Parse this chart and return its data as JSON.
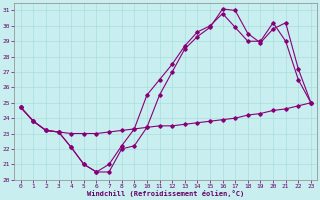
{
  "xlabel": "Windchill (Refroidissement éolien,°C)",
  "background_color": "#c8eef0",
  "grid_color": "#aadddd",
  "line_color": "#880077",
  "ylim": [
    20,
    31.5
  ],
  "xlim": [
    -0.5,
    23.5
  ],
  "yticks": [
    20,
    21,
    22,
    23,
    24,
    25,
    26,
    27,
    28,
    29,
    30,
    31
  ],
  "xticks": [
    0,
    1,
    2,
    3,
    4,
    5,
    6,
    7,
    8,
    9,
    10,
    11,
    12,
    13,
    14,
    15,
    16,
    17,
    18,
    19,
    20,
    21,
    22,
    23
  ],
  "line1_x": [
    0,
    1,
    2,
    3,
    4,
    5,
    6,
    7,
    8,
    9,
    10,
    11,
    12,
    13,
    14,
    15,
    16,
    17,
    18,
    19,
    20,
    21,
    22,
    23
  ],
  "line1_y": [
    24.7,
    23.8,
    23.2,
    23.1,
    23.0,
    23.0,
    23.0,
    23.1,
    23.2,
    23.3,
    23.4,
    23.5,
    23.5,
    23.6,
    23.7,
    23.8,
    23.9,
    24.0,
    24.2,
    24.3,
    24.5,
    24.6,
    24.8,
    25.0
  ],
  "line2_x": [
    0,
    1,
    2,
    3,
    4,
    5,
    6,
    7,
    8,
    9,
    10,
    11,
    12,
    13,
    14,
    15,
    16,
    17,
    18,
    19,
    20,
    21,
    22,
    23
  ],
  "line2_y": [
    24.7,
    23.8,
    23.2,
    23.1,
    22.1,
    21.0,
    20.5,
    21.0,
    22.2,
    23.3,
    25.5,
    26.5,
    27.5,
    28.7,
    29.6,
    30.0,
    30.8,
    29.9,
    29.0,
    29.0,
    30.2,
    29.0,
    26.5,
    25.0
  ],
  "line3_x": [
    0,
    1,
    2,
    3,
    4,
    5,
    6,
    7,
    8,
    9,
    10,
    11,
    12,
    13,
    14,
    15,
    16,
    17,
    18,
    19,
    20,
    21,
    22,
    23
  ],
  "line3_y": [
    24.7,
    23.8,
    23.2,
    23.1,
    22.1,
    21.0,
    20.5,
    20.5,
    22.0,
    22.2,
    23.4,
    25.5,
    27.0,
    28.5,
    29.3,
    29.9,
    31.1,
    31.0,
    29.5,
    28.9,
    29.8,
    30.2,
    27.2,
    25.0
  ]
}
